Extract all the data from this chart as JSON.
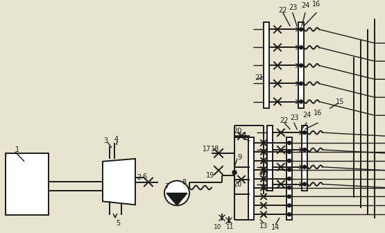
{
  "bg_color": "#e8e4d0",
  "lc": "#1a1a1a",
  "lw": 1.4,
  "tlw": 1.0,
  "fig_w": 5.55,
  "fig_h": 3.36,
  "dpi": 100
}
